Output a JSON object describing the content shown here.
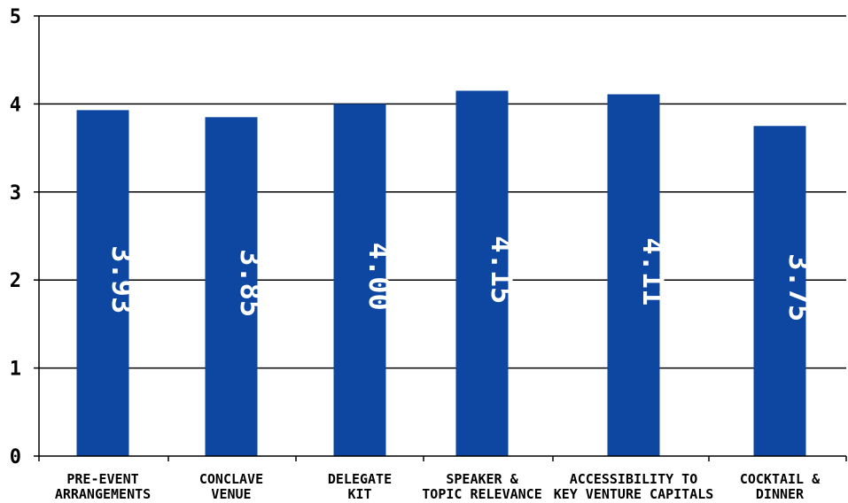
{
  "chart_data": {
    "type": "bar",
    "categories": [
      [
        "PRE-EVENT",
        "ARRANGEMENTS"
      ],
      [
        "CONCLAVE",
        "VENUE"
      ],
      [
        "DELEGATE",
        "KIT"
      ],
      [
        "SPEAKER &",
        "TOPIC RELEVANCE"
      ],
      [
        "ACCESSIBILITY TO",
        "KEY VENTURE CAPITALS"
      ],
      [
        "COCKTAIL &",
        "DINNER"
      ]
    ],
    "values": [
      3.93,
      3.85,
      4.0,
      4.15,
      4.11,
      3.75
    ],
    "data_labels": [
      "3.93",
      "3.85",
      "4.00",
      "4.15",
      "4.11",
      "3.75"
    ],
    "yticks": [
      "0",
      "1",
      "2",
      "3",
      "4",
      "5"
    ],
    "ylim": [
      0,
      5
    ],
    "grid": true,
    "bar_color": "#0d47a1",
    "title": "",
    "xlabel": "",
    "ylabel": ""
  }
}
